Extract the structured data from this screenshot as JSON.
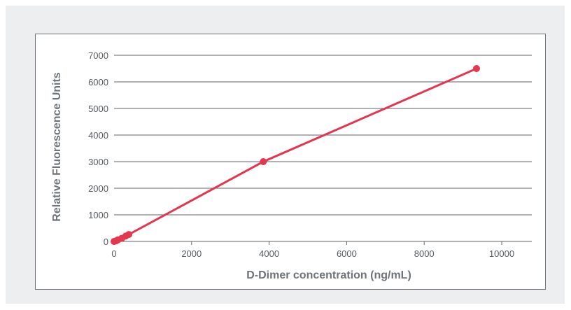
{
  "colors": {
    "background": "#edeef0",
    "panel": "#ffffff",
    "series": "#e5364f",
    "grid": "#5e6469",
    "text": "#555a5f"
  },
  "chart_data": {
    "type": "line",
    "title": "",
    "xlabel": "D-Dimer concentration (ng/mL)",
    "ylabel": "Relative Fluorescence Units",
    "xlim": [
      0,
      11000
    ],
    "ylim": [
      0,
      7000
    ],
    "x_ticks": [
      0,
      2000,
      4000,
      6000,
      8000,
      10000
    ],
    "y_ticks": [
      0,
      1000,
      2000,
      3000,
      4000,
      5000,
      6000,
      7000
    ],
    "grid": "horizontal",
    "legend": "none",
    "markers": true,
    "series": [
      {
        "color": "#e5364f",
        "points": [
          {
            "x": 0,
            "y": 0
          },
          {
            "x": 50,
            "y": 20
          },
          {
            "x": 100,
            "y": 60
          },
          {
            "x": 200,
            "y": 120
          },
          {
            "x": 300,
            "y": 200
          },
          {
            "x": 380,
            "y": 260
          },
          {
            "x": 3850,
            "y": 3000
          },
          {
            "x": 9350,
            "y": 6500
          }
        ]
      }
    ]
  }
}
